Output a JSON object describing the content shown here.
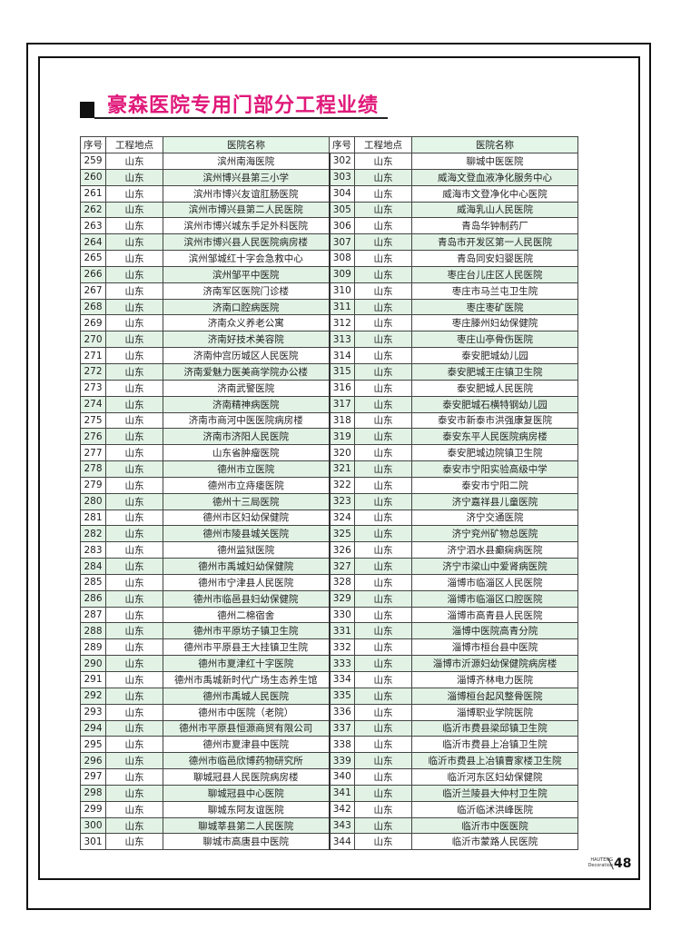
{
  "title": "豪森医院专用门部分工程业绩",
  "table": {
    "headers": [
      "序号",
      "工程地点",
      "医院名称",
      "序号",
      "工程地点",
      "医院名称"
    ],
    "left": [
      [
        "259",
        "山东",
        "滨州南海医院"
      ],
      [
        "260",
        "山东",
        "滨州博兴县第三小学"
      ],
      [
        "261",
        "山东",
        "滨州市博兴友谊肛肠医院"
      ],
      [
        "262",
        "山东",
        "滨州市博兴县第二人民医院"
      ],
      [
        "263",
        "山东",
        "滨州市博兴城东手足外科医院"
      ],
      [
        "264",
        "山东",
        "滨州市博兴县人民医院病房楼"
      ],
      [
        "265",
        "山东",
        "滨州邹城红十字会急救中心"
      ],
      [
        "266",
        "山东",
        "滨州邹平中医院"
      ],
      [
        "267",
        "山东",
        "济南军区医院门诊楼"
      ],
      [
        "268",
        "山东",
        "济南口腔病医院"
      ],
      [
        "269",
        "山东",
        "济南众义养老公寓"
      ],
      [
        "270",
        "山东",
        "济南好技术美容院"
      ],
      [
        "271",
        "山东",
        "济南仲宫历城区人民医院"
      ],
      [
        "272",
        "山东",
        "济南爱魅力医美商学院办公楼"
      ],
      [
        "273",
        "山东",
        "济南武警医院"
      ],
      [
        "274",
        "山东",
        "济南精神病医院"
      ],
      [
        "275",
        "山东",
        "济南市商河中医医院病房楼"
      ],
      [
        "276",
        "山东",
        "济南市济阳人民医院"
      ],
      [
        "277",
        "山东",
        "山东省肿瘤医院"
      ],
      [
        "278",
        "山东",
        "德州市立医院"
      ],
      [
        "279",
        "山东",
        "德州市立痔瘘医院"
      ],
      [
        "280",
        "山东",
        "德州十三局医院"
      ],
      [
        "281",
        "山东",
        "德州市区妇幼保健院"
      ],
      [
        "282",
        "山东",
        "德州市陵县城关医院"
      ],
      [
        "283",
        "山东",
        "德州监狱医院"
      ],
      [
        "284",
        "山东",
        "德州市禹城妇幼保健院"
      ],
      [
        "285",
        "山东",
        "德州市宁津县人民医院"
      ],
      [
        "286",
        "山东",
        "德州市临邑县妇幼保健院"
      ],
      [
        "287",
        "山东",
        "德州二棉宿舍"
      ],
      [
        "288",
        "山东",
        "德州市平原坊子镇卫生院"
      ],
      [
        "289",
        "山东",
        "德州市平原县王大挂镇卫生院"
      ],
      [
        "290",
        "山东",
        "德州市夏津红十字医院"
      ],
      [
        "291",
        "山东",
        "德州市禹城新时代广场生态养生馆"
      ],
      [
        "292",
        "山东",
        "德州市禹城人民医院"
      ],
      [
        "293",
        "山东",
        "德州市中医院（老院）"
      ],
      [
        "294",
        "山东",
        "德州市平原县恒源商贸有限公司"
      ],
      [
        "295",
        "山东",
        "德州市夏津县中医院"
      ],
      [
        "296",
        "山东",
        "德州市临邑欣博药物研究所"
      ],
      [
        "297",
        "山东",
        "聊城冠县人民医院病房楼"
      ],
      [
        "298",
        "山东",
        "聊城冠县中心医院"
      ],
      [
        "299",
        "山东",
        "聊城东阿友谊医院"
      ],
      [
        "300",
        "山东",
        "聊城莘县第二人民医院"
      ],
      [
        "301",
        "山东",
        "聊城市高唐县中医院"
      ]
    ],
    "right": [
      [
        "302",
        "山东",
        "聊城中医医院"
      ],
      [
        "303",
        "山东",
        "威海文登血液净化服务中心"
      ],
      [
        "304",
        "山东",
        "威海市文登净化中心医院"
      ],
      [
        "305",
        "山东",
        "威海乳山人民医院"
      ],
      [
        "306",
        "山东",
        "青岛华钟制药厂"
      ],
      [
        "307",
        "山东",
        "青岛市开发区第一人民医院"
      ],
      [
        "308",
        "山东",
        "青岛同安妇婴医院"
      ],
      [
        "309",
        "山东",
        "枣庄台儿庄区人民医院"
      ],
      [
        "310",
        "山东",
        "枣庄市马兰屯卫生院"
      ],
      [
        "311",
        "山东",
        "枣庄枣矿医院"
      ],
      [
        "312",
        "山东",
        "枣庄滕州妇幼保健院"
      ],
      [
        "313",
        "山东",
        "枣庄山亭骨伤医院"
      ],
      [
        "314",
        "山东",
        "泰安肥城幼儿园"
      ],
      [
        "315",
        "山东",
        "泰安肥城王庄镇卫生院"
      ],
      [
        "316",
        "山东",
        "泰安肥城人民医院"
      ],
      [
        "317",
        "山东",
        "泰安肥城石横特钢幼儿园"
      ],
      [
        "318",
        "山东",
        "泰安市新泰市洪强康复医院"
      ],
      [
        "319",
        "山东",
        "泰安东平人民医院病房楼"
      ],
      [
        "320",
        "山东",
        "泰安肥城边院镇卫生院"
      ],
      [
        "321",
        "山东",
        "泰安市宁阳实验高级中学"
      ],
      [
        "322",
        "山东",
        "泰安市宁阳二院"
      ],
      [
        "323",
        "山东",
        "济宁嘉祥县儿童医院"
      ],
      [
        "324",
        "山东",
        "济宁交通医院"
      ],
      [
        "325",
        "山东",
        "济宁兖州矿物总医院"
      ],
      [
        "326",
        "山东",
        "济宁泗水县癫痫病医院"
      ],
      [
        "327",
        "山东",
        "济宁市梁山中爱肾病医院"
      ],
      [
        "328",
        "山东",
        "淄博市临淄区人民医院"
      ],
      [
        "329",
        "山东",
        "淄博市临淄区口腔医院"
      ],
      [
        "330",
        "山东",
        "淄博市高青县人民医院"
      ],
      [
        "331",
        "山东",
        "淄博中医院高青分院"
      ],
      [
        "332",
        "山东",
        "淄博市桓台县中医院"
      ],
      [
        "333",
        "山东",
        "淄博市沂源妇幼保健院病房楼"
      ],
      [
        "334",
        "山东",
        "淄博齐林电力医院"
      ],
      [
        "335",
        "山东",
        "淄博桓台起风整骨医院"
      ],
      [
        "336",
        "山东",
        "淄博职业学院医院"
      ],
      [
        "337",
        "山东",
        "临沂市费县梁邱镇卫生院"
      ],
      [
        "338",
        "山东",
        "临沂市费县上冶镇卫生院"
      ],
      [
        "339",
        "山东",
        "临沂市费县上冶镇曹家楼卫生院"
      ],
      [
        "340",
        "山东",
        "临沂河东区妇幼保健院"
      ],
      [
        "341",
        "山东",
        "临沂兰陵县大仲村卫生院"
      ],
      [
        "342",
        "山东",
        "临沂临沭洪峰医院"
      ],
      [
        "343",
        "山东",
        "临沂市中医医院"
      ],
      [
        "344",
        "山东",
        "临沂市蒙路人民医院"
      ]
    ]
  },
  "footer": {
    "brand_line1": "HAUTENG",
    "brand_line2": "Decoration",
    "page_number": "48"
  },
  "colors": {
    "title": "#e0197a",
    "row_alt": "#e2f3e6"
  }
}
